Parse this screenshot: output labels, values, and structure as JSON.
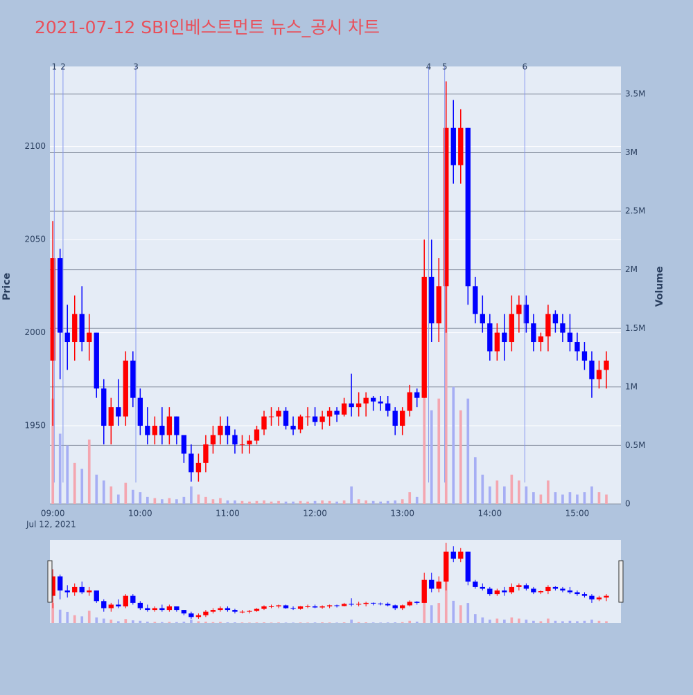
{
  "chart_data": {
    "type": "candlestick",
    "title": "2021-07-12 SBI인베스트먼트 뉴스_공시 차트",
    "y_title": "Price",
    "y2_title": "Volume",
    "x": [
      "09:00",
      "09:05",
      "09:10",
      "09:15",
      "09:20",
      "09:25",
      "09:30",
      "09:35",
      "09:40",
      "09:45",
      "09:50",
      "09:55",
      "10:00",
      "10:05",
      "10:10",
      "10:15",
      "10:20",
      "10:25",
      "10:30",
      "10:35",
      "10:40",
      "10:45",
      "10:50",
      "10:55",
      "11:00",
      "11:05",
      "11:10",
      "11:15",
      "11:20",
      "11:25",
      "11:30",
      "11:35",
      "11:40",
      "11:45",
      "11:50",
      "11:55",
      "12:00",
      "12:05",
      "12:10",
      "12:15",
      "12:20",
      "12:25",
      "12:30",
      "12:35",
      "12:40",
      "12:45",
      "12:50",
      "12:55",
      "13:00",
      "13:05",
      "13:10",
      "13:15",
      "13:20",
      "13:25",
      "13:30",
      "13:35",
      "13:40",
      "13:45",
      "13:50",
      "13:55",
      "14:00",
      "14:05",
      "14:10",
      "14:15",
      "14:20",
      "14:25",
      "14:30",
      "14:35",
      "14:40",
      "14:45",
      "14:50",
      "14:55",
      "15:00",
      "15:05",
      "15:10",
      "15:15",
      "15:20"
    ],
    "open": [
      1985,
      2040,
      2000,
      1995,
      2010,
      1995,
      2000,
      1970,
      1950,
      1960,
      1955,
      1985,
      1965,
      1950,
      1945,
      1950,
      1945,
      1955,
      1945,
      1935,
      1925,
      1930,
      1940,
      1945,
      1950,
      1945,
      1940,
      1940,
      1942,
      1948,
      1955,
      1955,
      1958,
      1950,
      1948,
      1955,
      1955,
      1952,
      1955,
      1958,
      1956,
      1962,
      1960,
      1962,
      1965,
      1963,
      1962,
      1958,
      1950,
      1958,
      1968,
      1965,
      2030,
      2005,
      2025,
      2110,
      2090,
      2110,
      2025,
      2010,
      2005,
      1990,
      2000,
      1995,
      2010,
      2015,
      2005,
      1995,
      1998,
      2010,
      2005,
      2000,
      1995,
      1990,
      1985,
      1975,
      1980
    ],
    "high": [
      2060,
      2045,
      2015,
      2020,
      2025,
      2010,
      2000,
      1975,
      1965,
      1975,
      1990,
      1990,
      1970,
      1960,
      1955,
      1960,
      1960,
      1955,
      1945,
      1940,
      1935,
      1945,
      1950,
      1955,
      1955,
      1948,
      1945,
      1945,
      1950,
      1958,
      1960,
      1960,
      1960,
      1955,
      1956,
      1960,
      1960,
      1958,
      1960,
      1960,
      1965,
      1978,
      1968,
      1968,
      1966,
      1966,
      1966,
      1960,
      1960,
      1972,
      1970,
      2050,
      2050,
      2040,
      2135,
      2125,
      2120,
      2110,
      2030,
      2020,
      2010,
      2005,
      2010,
      2020,
      2020,
      2020,
      2010,
      2000,
      2015,
      2012,
      2010,
      2010,
      2000,
      1995,
      1990,
      1985,
      1990
    ],
    "low": [
      1950,
      1975,
      1980,
      1985,
      1990,
      1985,
      1965,
      1940,
      1940,
      1950,
      1950,
      1960,
      1945,
      1940,
      1940,
      1940,
      1940,
      1940,
      1930,
      1920,
      1920,
      1925,
      1935,
      1940,
      1940,
      1935,
      1935,
      1935,
      1940,
      1945,
      1950,
      1950,
      1948,
      1945,
      1946,
      1950,
      1950,
      1948,
      1950,
      1952,
      1955,
      1955,
      1955,
      1955,
      1958,
      1958,
      1955,
      1945,
      1945,
      1955,
      1960,
      1965,
      1995,
      1995,
      2000,
      2080,
      2080,
      2015,
      2005,
      2000,
      1985,
      1985,
      1985,
      1990,
      2000,
      2000,
      1990,
      1990,
      1990,
      2000,
      1995,
      1990,
      1985,
      1980,
      1965,
      1970,
      1970
    ],
    "close": [
      2040,
      2000,
      1995,
      2010,
      1995,
      2000,
      1970,
      1950,
      1960,
      1955,
      1985,
      1965,
      1950,
      1945,
      1950,
      1945,
      1955,
      1945,
      1935,
      1925,
      1930,
      1940,
      1945,
      1950,
      1945,
      1940,
      1940,
      1942,
      1948,
      1955,
      1955,
      1958,
      1950,
      1948,
      1955,
      1955,
      1952,
      1955,
      1958,
      1956,
      1962,
      1960,
      1962,
      1965,
      1963,
      1962,
      1958,
      1950,
      1958,
      1968,
      1965,
      2030,
      2005,
      2025,
      2110,
      2090,
      2110,
      2025,
      2010,
      2005,
      1990,
      2000,
      1995,
      2010,
      2015,
      2005,
      1995,
      1998,
      2010,
      2005,
      2000,
      1995,
      1990,
      1985,
      1975,
      1980,
      1985
    ],
    "volume": [
      900000,
      600000,
      500000,
      350000,
      300000,
      550000,
      250000,
      200000,
      150000,
      80000,
      180000,
      120000,
      100000,
      60000,
      50000,
      40000,
      50000,
      40000,
      60000,
      150000,
      80000,
      60000,
      40000,
      50000,
      30000,
      30000,
      25000,
      20000,
      25000,
      30000,
      20000,
      25000,
      20000,
      20000,
      25000,
      20000,
      25000,
      30000,
      25000,
      20000,
      30000,
      150000,
      40000,
      30000,
      25000,
      20000,
      25000,
      30000,
      40000,
      100000,
      60000,
      1100000,
      800000,
      900000,
      3000000,
      1000000,
      800000,
      900000,
      400000,
      250000,
      150000,
      200000,
      150000,
      250000,
      200000,
      150000,
      100000,
      80000,
      200000,
      100000,
      80000,
      100000,
      80000,
      100000,
      150000,
      100000,
      80000
    ],
    "xlim": [
      "08:58",
      "15:30"
    ],
    "xticks": [
      "09:00",
      "10:00",
      "11:00",
      "12:00",
      "13:00",
      "14:00",
      "15:00"
    ],
    "x_date_label": "Jul 12, 2021",
    "ylim": [
      1908,
      2143
    ],
    "yticks": [
      1950,
      2000,
      2050,
      2100
    ],
    "y2lim": [
      0,
      3736000
    ],
    "y2ticks": [
      0,
      {
        "value": 500000,
        "label": "0.5M"
      },
      {
        "value": 1000000,
        "label": "1M"
      },
      {
        "value": 1500000,
        "label": "1.5M"
      },
      {
        "value": 2000000,
        "label": "2M"
      },
      {
        "value": 2500000,
        "label": "2.5M"
      },
      {
        "value": 3000000,
        "label": "3M"
      },
      {
        "value": 3500000,
        "label": "3.5M"
      }
    ],
    "up_color": "#ff0000",
    "down_color": "#0000ff",
    "volume_up_color": "#f4a6b0",
    "volume_down_color": "#a6aef4",
    "news": {
      "x": [
        "09:01",
        "09:07",
        "09:57",
        "13:18",
        "13:29",
        "14:24"
      ],
      "labels": [
        "1",
        "2",
        "3",
        "4",
        "5",
        "6"
      ]
    },
    "grid": true,
    "rangeslider": true
  }
}
